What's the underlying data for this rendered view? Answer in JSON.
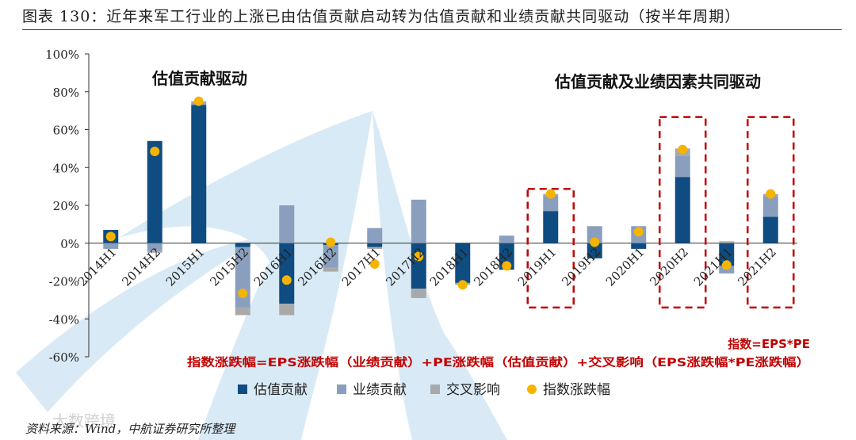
{
  "figure": {
    "title": "图表 130：近年来军工行业的上涨已由估值贡献启动转为估值贡献和业绩贡献共同驱动（按半年周期）",
    "source": "资料来源：Wind，中航证券研究所整理",
    "watermark": "大数跨境"
  },
  "annotations": {
    "left_phase": "估值贡献驱动",
    "right_phase": "估值贡献及业绩因素共同驱动",
    "formula_short": "指数=EPS*PE",
    "formula_long": "指数涨跌幅=EPS涨跌幅（业绩贡献）+PE涨跌幅（估值贡献）+交叉影响（EPS涨跌幅*PE涨跌幅）"
  },
  "colors": {
    "valuation": "#0f4c81",
    "earnings": "#8a9fbe",
    "cross": "#a9a9a9",
    "index": "#f5b400",
    "highlight": "#c00000",
    "watermark": "#b9d9ee"
  },
  "chart_data": {
    "type": "bar",
    "stacked": true,
    "ylim": [
      -60,
      100
    ],
    "yticks": [
      -60,
      -40,
      -20,
      0,
      20,
      40,
      60,
      80,
      100
    ],
    "ytick_labels": [
      "-60%",
      "-40%",
      "-20%",
      "0%",
      "20%",
      "40%",
      "60%",
      "80%",
      "100%"
    ],
    "categories": [
      "2014H1",
      "2014H2",
      "2015H1",
      "2015H2",
      "2016H1",
      "2016H2",
      "2017H1",
      "2017H2",
      "2018H1",
      "2018H2",
      "2019H1",
      "2019H2",
      "2020H1",
      "2020H2",
      "2021H1",
      "2021H2"
    ],
    "series": [
      {
        "name": "估值贡献",
        "kind": "bar",
        "values": [
          7,
          54,
          73,
          -2,
          -32,
          -1,
          -2,
          -24,
          -21,
          -14,
          17,
          -8,
          -3,
          35,
          -12,
          14
        ]
      },
      {
        "name": "业绩贡献",
        "kind": "bar",
        "values": [
          -3,
          -4,
          1,
          -32,
          20,
          -12,
          8,
          23,
          0,
          4,
          8,
          9,
          9,
          11,
          -4,
          11
        ]
      },
      {
        "name": "交叉影响",
        "kind": "bar",
        "values": [
          0,
          -1,
          1,
          -4,
          -6,
          -2,
          -1,
          -5,
          -1,
          0,
          1,
          0,
          0,
          4,
          1,
          1
        ]
      },
      {
        "name": "指数涨跌幅",
        "kind": "point",
        "values": [
          3.5,
          48.5,
          75,
          -26.5,
          -19.5,
          0.5,
          -11,
          -7,
          -22,
          -12,
          26,
          0.5,
          6,
          49.5,
          -11.5,
          26
        ]
      }
    ],
    "highlighted_categories": [
      "2019H1",
      "2020H2",
      "2021H2"
    ],
    "legend": {
      "position": "bottom",
      "entries": [
        "估值贡献",
        "业绩贡献",
        "交叉影响",
        "指数涨跌幅"
      ]
    }
  }
}
